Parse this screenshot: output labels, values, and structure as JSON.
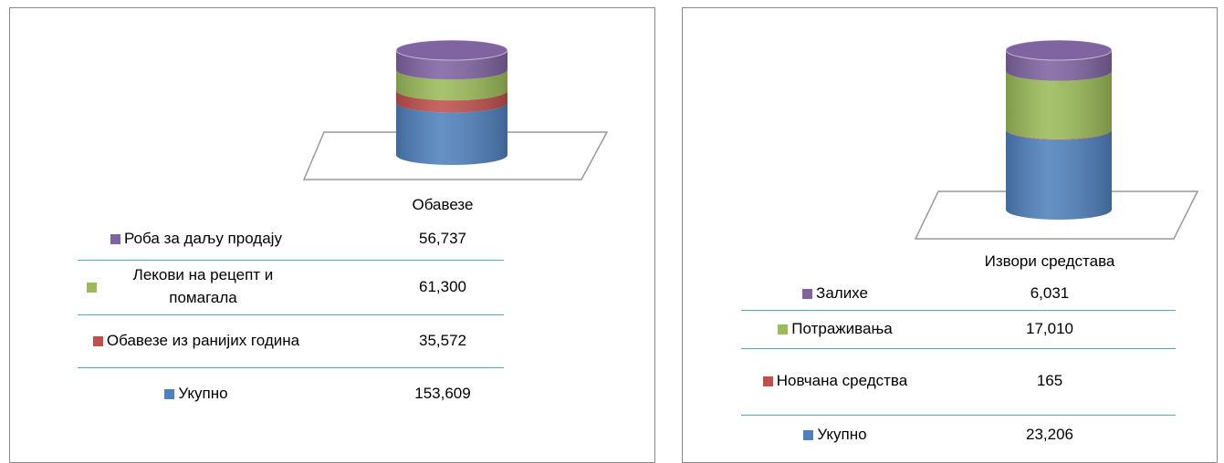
{
  "chart_data": [
    {
      "type": "bar",
      "categories": [
        "Обавезе"
      ],
      "series": [
        {
          "name": "Укупно",
          "color": "#4f81bd",
          "values": [
            153609
          ],
          "value_labels": [
            "153,609"
          ]
        },
        {
          "name": "Обавезе из ранијих година",
          "color": "#c0504d",
          "values": [
            35572
          ],
          "value_labels": [
            "35,572"
          ]
        },
        {
          "name": "Лекови на рецепт и помагала",
          "color": "#9bbb59",
          "values": [
            61300
          ],
          "value_labels": [
            "61,300"
          ]
        },
        {
          "name": "Роба за даљу продају",
          "color": "#8064a2",
          "values": [
            56737
          ],
          "value_labels": [
            "56,737"
          ]
        }
      ]
    },
    {
      "type": "bar",
      "categories": [
        "Извори средстава"
      ],
      "series": [
        {
          "name": "Укупно",
          "color": "#4f81bd",
          "values": [
            23206
          ],
          "value_labels": [
            "23,206"
          ]
        },
        {
          "name": "Новчана средства",
          "color": "#c0504d",
          "values": [
            165
          ],
          "value_labels": [
            "165"
          ]
        },
        {
          "name": "Потраживања",
          "color": "#9bbb59",
          "values": [
            17010
          ],
          "value_labels": [
            "17,010"
          ]
        },
        {
          "name": "Залихе",
          "color": "#8064a2",
          "values": [
            6031
          ],
          "value_labels": [
            "6,031"
          ]
        }
      ]
    }
  ]
}
